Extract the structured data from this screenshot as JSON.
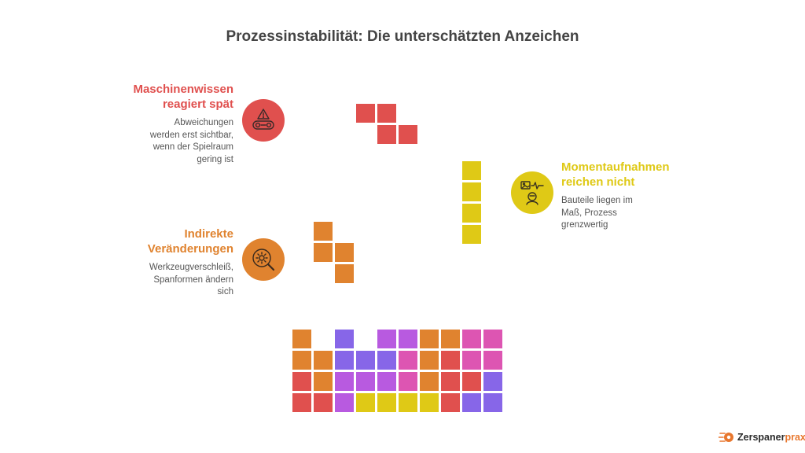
{
  "title": "Prozessinstabilität: Die unterschätzten Anzeichen",
  "colors": {
    "red": "#e0504e",
    "orange": "#e0832f",
    "yellow": "#dfc916",
    "purple": "#8766e8",
    "violet": "#b85ae0",
    "pink": "#dd55b2",
    "title_text": "#444444",
    "body_text": "#555555"
  },
  "items": [
    {
      "heading_line1": "Maschinenwissen",
      "heading_line2": "reagiert spät",
      "desc_lines": [
        "Abweichungen",
        "werden erst sichtbar,",
        "wenn der Spielraum",
        "gering ist"
      ],
      "icon": "machine-warning-icon",
      "color": "#e0504e"
    },
    {
      "heading_line1": "Momentaufnahmen",
      "heading_line2": "reichen nicht",
      "desc_lines": [
        "Bauteile liegen im",
        "Maß, Prozess",
        "grenzwertig"
      ],
      "icon": "snapshot-inspection-icon",
      "color": "#dfc916"
    },
    {
      "heading_line1": "Indirekte",
      "heading_line2": "Veränderungen",
      "desc_lines": [
        "Werkzeugverschleiß,",
        "Spanformen ändern",
        "sich"
      ],
      "icon": "gear-search-icon",
      "color": "#e0832f"
    }
  ],
  "logo": {
    "text_dark": "Zerspaner",
    "text_accent": "praxis",
    "icon": "zerspanerpraxis-logo-icon"
  }
}
